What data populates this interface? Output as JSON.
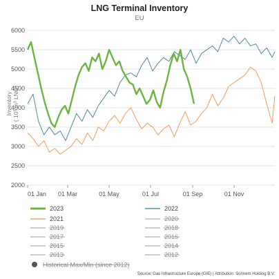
{
  "chart_data": {
    "type": "line",
    "title": "LNG Terminal Inventory",
    "subtitle": "EU",
    "ylabel": "Inventory",
    "ylabel_unit": "( 10³ m³ LNG)",
    "ylim": [
      2000,
      6000
    ],
    "yticks": [
      2000,
      2500,
      3000,
      3500,
      4000,
      4500,
      5000,
      5500,
      6000
    ],
    "x_axis_type": "day-of-year",
    "xlim": [
      1,
      365
    ],
    "xticks": [
      {
        "day": 1,
        "label": "01 Jan"
      },
      {
        "day": 60,
        "label": "01 Mar"
      },
      {
        "day": 121,
        "label": "01 May"
      },
      {
        "day": 182,
        "label": "01 Jul"
      },
      {
        "day": 244,
        "label": "01 Sep"
      },
      {
        "day": 305,
        "label": "01 Nov"
      }
    ],
    "grid": "horizontal",
    "legend_position": "bottom",
    "series": [
      {
        "name": "2023",
        "color": "#6db33f",
        "visible": true,
        "bold": true,
        "x": [
          1,
          6,
          11,
          16,
          21,
          26,
          31,
          36,
          41,
          46,
          51,
          56,
          61,
          66,
          71,
          76,
          81,
          86,
          91,
          96,
          101,
          106,
          111,
          116,
          121,
          126,
          131,
          136,
          141,
          146,
          151,
          156,
          161,
          166,
          171,
          176,
          181,
          186,
          191,
          196,
          201,
          206,
          211,
          216,
          221,
          226,
          231,
          236,
          241,
          246
        ],
        "y": [
          5500,
          5700,
          5300,
          4900,
          4500,
          4150,
          3850,
          3600,
          3500,
          3750,
          3950,
          4050,
          3850,
          4200,
          4550,
          4850,
          5050,
          5150,
          4950,
          5300,
          5200,
          5400,
          5000,
          5200,
          5500,
          5300,
          5100,
          5200,
          4950,
          4800,
          4650,
          4600,
          4350,
          4500,
          4300,
          4100,
          4200,
          4450,
          4150,
          4000,
          4400,
          4700,
          5100,
          5400,
          5200,
          5500,
          5000,
          4800,
          4500,
          4100
        ]
      },
      {
        "name": "2022",
        "color": "#5b93a6",
        "visible": true,
        "bold": false,
        "x": [
          1,
          9,
          17,
          25,
          33,
          41,
          49,
          57,
          65,
          73,
          81,
          89,
          97,
          105,
          113,
          121,
          129,
          137,
          145,
          153,
          161,
          169,
          177,
          185,
          193,
          201,
          209,
          217,
          225,
          233,
          241,
          249,
          257,
          265,
          273,
          281,
          289,
          297,
          305,
          313,
          321,
          329,
          337,
          345,
          353,
          361,
          365
        ],
        "y": [
          4100,
          4350,
          3650,
          3300,
          3500,
          3300,
          3400,
          3150,
          3500,
          3850,
          3650,
          3950,
          3750,
          4050,
          4250,
          4450,
          4300,
          4650,
          4850,
          4900,
          4800,
          5100,
          5300,
          4950,
          5150,
          5300,
          5200,
          5450,
          5350,
          5250,
          5500,
          5150,
          5400,
          5500,
          5600,
          5450,
          5800,
          5700,
          5850,
          5650,
          5800,
          5600,
          5650,
          5400,
          5550,
          5300,
          5450
        ]
      },
      {
        "name": "2021",
        "color": "#f0a568",
        "visible": true,
        "bold": false,
        "x": [
          1,
          9,
          17,
          25,
          33,
          41,
          49,
          57,
          65,
          73,
          81,
          89,
          97,
          105,
          113,
          121,
          129,
          137,
          145,
          153,
          161,
          169,
          177,
          185,
          193,
          201,
          209,
          217,
          225,
          233,
          241,
          249,
          257,
          265,
          273,
          281,
          289,
          297,
          305,
          313,
          321,
          329,
          337,
          345,
          353,
          361,
          365
        ],
        "y": [
          3350,
          3200,
          3000,
          3150,
          2850,
          2950,
          2800,
          2900,
          3000,
          3200,
          3050,
          3350,
          3150,
          3500,
          3400,
          3650,
          3800,
          3600,
          3850,
          4000,
          3700,
          3450,
          3600,
          3500,
          3300,
          3450,
          3550,
          3250,
          3600,
          3900,
          3550,
          3650,
          3850,
          4000,
          4350,
          4050,
          4250,
          4550,
          4650,
          4750,
          4850,
          5050,
          4950,
          4650,
          4100,
          3600,
          4300
        ]
      },
      {
        "name": "2020",
        "color": "#bbbbbb",
        "visible": false
      },
      {
        "name": "2019",
        "color": "#bbbbbb",
        "visible": false
      },
      {
        "name": "2018",
        "color": "#bbbbbb",
        "visible": false
      },
      {
        "name": "2017",
        "color": "#bbbbbb",
        "visible": false
      },
      {
        "name": "2016",
        "color": "#bbbbbb",
        "visible": false
      },
      {
        "name": "2015",
        "color": "#bbbbbb",
        "visible": false
      },
      {
        "name": "2014",
        "color": "#bbbbbb",
        "visible": false
      },
      {
        "name": "2013",
        "color": "#bbbbbb",
        "visible": false
      },
      {
        "name": "2012",
        "color": "#bbbbbb",
        "visible": false
      }
    ],
    "legend_order": [
      "2023",
      "2022",
      "2021",
      "2020",
      "2019",
      "2018",
      "2017",
      "2016",
      "2015",
      "2014",
      "2013",
      "2012"
    ],
    "historical_band": {
      "label": "Historical Max/Min (since 2012)",
      "visible": false
    },
    "source": "Source: Gas Infrastructure Europe (GIE) | Attribution: Sonnem Holding B.V."
  }
}
